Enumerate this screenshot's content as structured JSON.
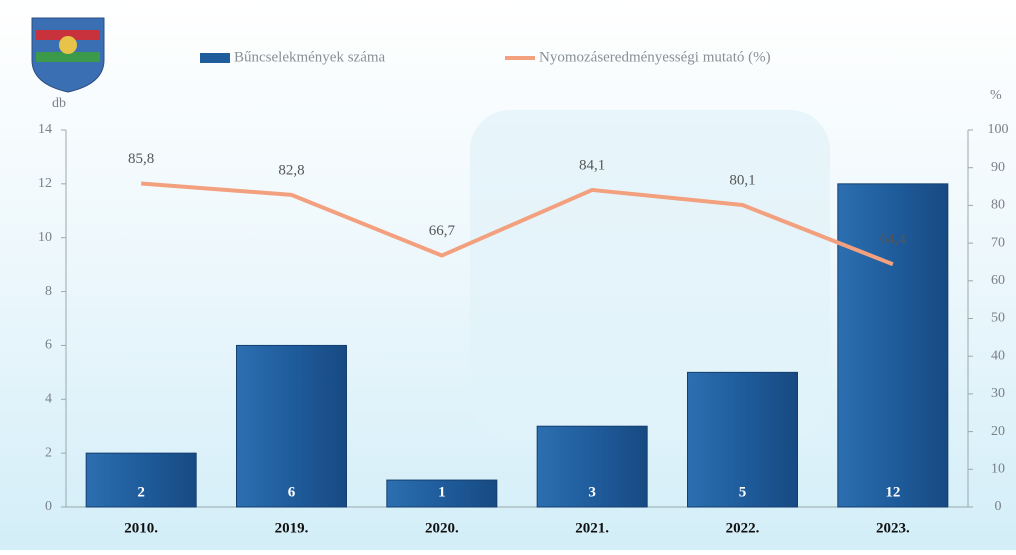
{
  "chart_data": {
    "type": "bar",
    "ylabel": "db",
    "y2label": "%",
    "categories": [
      "2010.",
      "2019.",
      "2020.",
      "2021.",
      "2022.",
      "2023."
    ],
    "series": [
      {
        "name": "Bűncselekmények száma",
        "type": "bar",
        "color": "#1f5c9c",
        "values": [
          2,
          6,
          1,
          3,
          5,
          12
        ]
      },
      {
        "name": "Nyomozáseredményességi mutató (%)",
        "type": "line",
        "axis": "y2",
        "color": "#f2a07e",
        "values": [
          85.8,
          82.8,
          66.7,
          84.1,
          80.1,
          64.4
        ],
        "value_labels": [
          "85,8",
          "82,8",
          "66,7",
          "84,1",
          "80,1",
          "64,4"
        ]
      }
    ],
    "ylim": [
      0,
      14
    ],
    "yticks": [
      0,
      2,
      4,
      6,
      8,
      10,
      12,
      14
    ],
    "y2lim": [
      0,
      100
    ],
    "y2ticks": [
      0,
      10,
      20,
      30,
      40,
      50,
      60,
      70,
      80,
      90,
      100
    ],
    "legend": "top"
  }
}
